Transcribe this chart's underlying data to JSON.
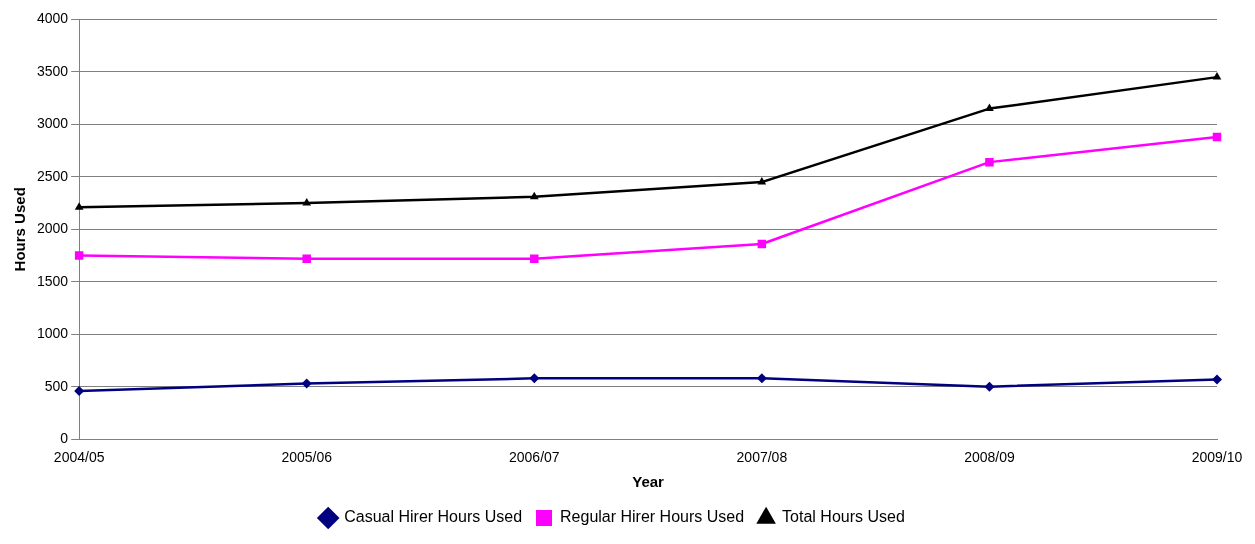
{
  "chart_data": {
    "type": "line",
    "xlabel": "Year",
    "ylabel": "Hours Used",
    "categories": [
      "2004/05",
      "2005/06",
      "2006/07",
      "2007/08",
      "2008/09",
      "2009/10"
    ],
    "series": [
      {
        "name": "Casual Hirer Hours Used",
        "color": "#000080",
        "marker": "diamond",
        "values": [
          460,
          530,
          580,
          580,
          500,
          570
        ]
      },
      {
        "name": "Regular Hirer Hours Used",
        "color": "#ff00ff",
        "marker": "square",
        "values": [
          1750,
          1720,
          1720,
          1860,
          2640,
          2880
        ]
      },
      {
        "name": "Total Hours Used",
        "color": "#000000",
        "marker": "triangle",
        "values": [
          2210,
          2250,
          2310,
          2450,
          3150,
          3450
        ]
      }
    ],
    "ylim": [
      0,
      4000
    ],
    "yticks": [
      0,
      500,
      1000,
      1500,
      2000,
      2500,
      3000,
      3500,
      4000
    ],
    "grid": "y",
    "legend": "bottom",
    "line_style": "solid"
  }
}
